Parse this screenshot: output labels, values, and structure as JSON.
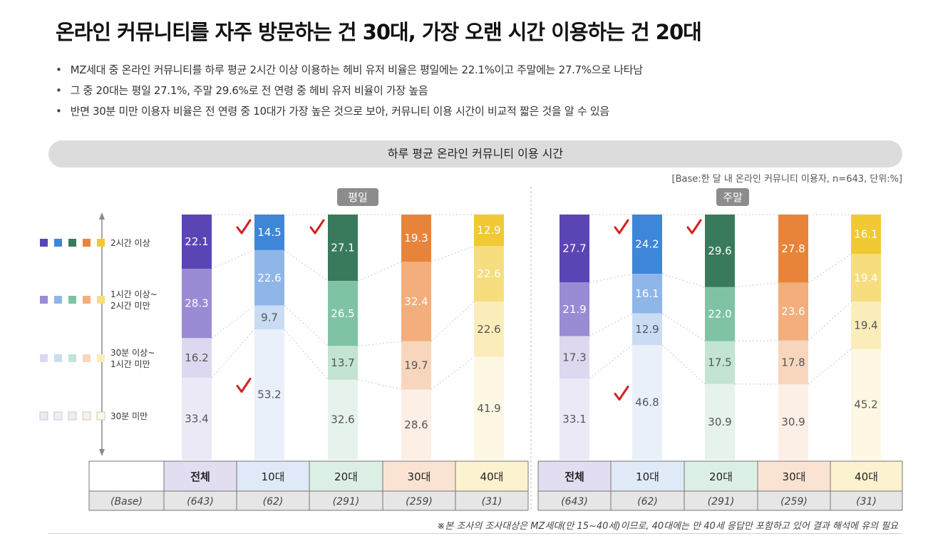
{
  "title": "온라인 커뮤니티를 자주 방문하는 건 30대, 가장 오랜 시간 이용하는 건 20대",
  "bullets": [
    "MZ세대 중 온라인 커뮤니티를 하루 평균 2시간 이상 이용하는 헤비 유저 비율은 평일에는 22.1%이고 주말에는 27.7%으로 나타남",
    "그 중 20대는 평일 27.1%, 주말 29.6%로 전 연령 중 헤비 유저 비율이 가장 높음",
    "반면 30분 미만 이용자 비율은 전 연령 중 10대가 가장 높은 것으로 보아, 커뮤니티 이용 시간이 비교적 짧은 것을 알 수 있음"
  ],
  "banner": "하루 평균 온라인 커뮤니티 이용 시간",
  "base_note": "[Base:한 달 내 온라인 커뮤니티 이용자, n=643, 단위:%]",
  "footnote": "※본 조사의 조사대상은 MZ세대(만 15~40세)이므로, 40대에는 만 40세 응답만 포함하고 있어 결과 해석에 유의 필요",
  "chart_data": {
    "type": "bar",
    "stacked": true,
    "categories": [
      "전체",
      "10대",
      "20대",
      "30대",
      "40대"
    ],
    "base_label": "(Base)",
    "bases": [
      "(643)",
      "(62)",
      "(291)",
      "(259)",
      "(31)"
    ],
    "legend": [
      "2시간 이상",
      "1시간 이상~\n2시간 미만",
      "30분 이상~\n1시간 미만",
      "30분 미만"
    ],
    "panels": [
      {
        "label": "평일",
        "series": [
          {
            "name": "2시간 이상",
            "values": [
              22.1,
              14.5,
              27.1,
              19.3,
              12.9
            ]
          },
          {
            "name": "1시간 이상~2시간 미만",
            "values": [
              28.3,
              22.6,
              26.5,
              32.4,
              22.6
            ]
          },
          {
            "name": "30분 이상~1시간 미만",
            "values": [
              16.2,
              9.7,
              13.7,
              19.7,
              22.6
            ]
          },
          {
            "name": "30분 미만",
            "values": [
              33.4,
              53.2,
              32.6,
              28.6,
              41.9
            ]
          }
        ],
        "checks": [
          [
            1,
            0
          ],
          [
            2,
            0
          ],
          [
            1,
            3
          ]
        ]
      },
      {
        "label": "주말",
        "series": [
          {
            "name": "2시간 이상",
            "values": [
              27.7,
              24.2,
              29.6,
              27.8,
              16.1
            ]
          },
          {
            "name": "1시간 이상~2시간 미만",
            "values": [
              21.9,
              16.1,
              22.0,
              23.6,
              19.4
            ]
          },
          {
            "name": "30분 이상~1시간 미만",
            "values": [
              17.3,
              12.9,
              17.5,
              17.8,
              19.4
            ]
          },
          {
            "name": "30분 미만",
            "values": [
              33.1,
              46.8,
              30.9,
              30.9,
              45.2
            ]
          }
        ],
        "checks": [
          [
            1,
            0
          ],
          [
            2,
            0
          ],
          [
            1,
            3
          ]
        ]
      }
    ],
    "colors": [
      [
        "#5b45b5",
        "#3e86d8",
        "#3a7a5c",
        "#e8843a",
        "#f0c934"
      ],
      [
        "#9b8ad4",
        "#8fb6e8",
        "#7fc3a4",
        "#f2ae7c",
        "#f6de7e"
      ],
      [
        "#ddd8ef",
        "#c9dcf3",
        "#c3e3d3",
        "#f8d6bd",
        "#fbedba"
      ],
      [
        "#ebe9f5",
        "#e9f0fa",
        "#e6f3ec",
        "#fcefe5",
        "#fdf7e4"
      ]
    ],
    "header_colors": [
      "#e2ddf0",
      "#dfe9f7",
      "#dcefe5",
      "#fbe3d3",
      "#fcf2cf"
    ],
    "check_color": "#d42020",
    "ylim": [
      0,
      100
    ]
  }
}
